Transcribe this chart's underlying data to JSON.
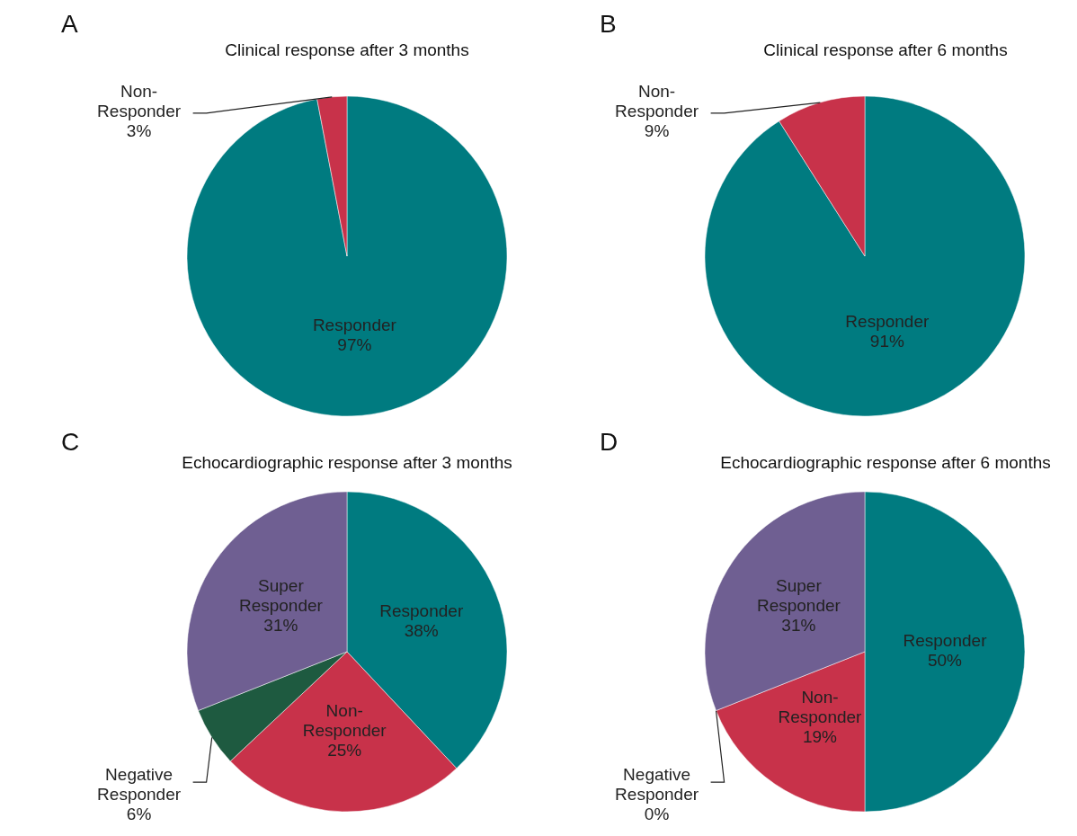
{
  "chart_data": [
    {
      "type": "pie",
      "title": "Clinical response after 3 months",
      "annotations": [
        "A"
      ],
      "categories": [
        "Responder",
        "Non-Responder"
      ],
      "values": [
        97,
        3
      ],
      "value_labels": [
        "97%",
        "3%"
      ],
      "colors": [
        "#007b80",
        "#c8324a"
      ]
    },
    {
      "type": "pie",
      "title": "Clinical response after 6 months",
      "annotations": [
        "B"
      ],
      "categories": [
        "Responder",
        "Non-Responder"
      ],
      "values": [
        91,
        9
      ],
      "value_labels": [
        "91%",
        "9%"
      ],
      "colors": [
        "#007b80",
        "#c8324a"
      ]
    },
    {
      "type": "pie",
      "title": "Echocardiographic response after 3 months",
      "annotations": [
        "C"
      ],
      "categories": [
        "Responder",
        "Non-Responder",
        "Negative Responder",
        "Super Responder"
      ],
      "values": [
        38,
        25,
        6,
        31
      ],
      "value_labels": [
        "38%",
        "25%",
        "6%",
        "31%"
      ],
      "colors": [
        "#007b80",
        "#c8324a",
        "#1e5a40",
        "#6f5f92"
      ]
    },
    {
      "type": "pie",
      "title": "Echocardiographic response after 6 months",
      "annotations": [
        "D"
      ],
      "categories": [
        "Responder",
        "Non-Responder",
        "Negative Responder",
        "Super Responder"
      ],
      "values": [
        50,
        19,
        0,
        31
      ],
      "value_labels": [
        "50%",
        "19%",
        "0%",
        "31%"
      ],
      "colors": [
        "#007b80",
        "#c8324a",
        "#1e5a40",
        "#6f5f92"
      ]
    }
  ]
}
